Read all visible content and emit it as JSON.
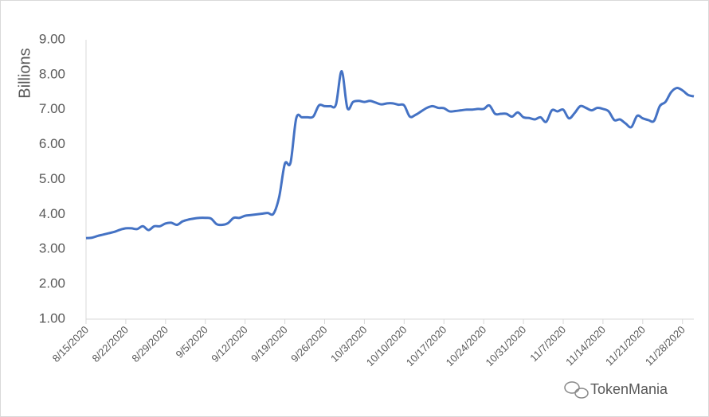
{
  "chart_data": {
    "type": "line",
    "y_label": "Billions",
    "watermark": "TokenMania",
    "x": [
      "8/15/2020",
      "8/16/2020",
      "8/17/2020",
      "8/18/2020",
      "8/19/2020",
      "8/20/2020",
      "8/21/2020",
      "8/22/2020",
      "8/23/2020",
      "8/24/2020",
      "8/25/2020",
      "8/26/2020",
      "8/27/2020",
      "8/28/2020",
      "8/29/2020",
      "8/30/2020",
      "8/31/2020",
      "9/1/2020",
      "9/2/2020",
      "9/3/2020",
      "9/4/2020",
      "9/5/2020",
      "9/6/2020",
      "9/7/2020",
      "9/8/2020",
      "9/9/2020",
      "9/10/2020",
      "9/11/2020",
      "9/12/2020",
      "9/13/2020",
      "9/14/2020",
      "9/15/2020",
      "9/16/2020",
      "9/17/2020",
      "9/18/2020",
      "9/19/2020",
      "9/20/2020",
      "9/21/2020",
      "9/22/2020",
      "9/23/2020",
      "9/24/2020",
      "9/25/2020",
      "9/26/2020",
      "9/27/2020",
      "9/28/2020",
      "9/29/2020",
      "9/30/2020",
      "10/1/2020",
      "10/2/2020",
      "10/3/2020",
      "10/4/2020",
      "10/5/2020",
      "10/6/2020",
      "10/7/2020",
      "10/8/2020",
      "10/9/2020",
      "10/10/2020",
      "10/11/2020",
      "10/12/2020",
      "10/13/2020",
      "10/14/2020",
      "10/15/2020",
      "10/16/2020",
      "10/17/2020",
      "10/18/2020",
      "10/19/2020",
      "10/20/2020",
      "10/21/2020",
      "10/22/2020",
      "10/23/2020",
      "10/24/2020",
      "10/25/2020",
      "10/26/2020",
      "10/27/2020",
      "10/28/2020",
      "10/29/2020",
      "10/30/2020",
      "10/31/2020",
      "11/1/2020",
      "11/2/2020",
      "11/3/2020",
      "11/4/2020",
      "11/5/2020",
      "11/6/2020",
      "11/7/2020",
      "11/8/2020",
      "11/9/2020",
      "11/10/2020",
      "11/11/2020",
      "11/12/2020",
      "11/13/2020",
      "11/14/2020",
      "11/15/2020",
      "11/16/2020",
      "11/17/2020",
      "11/18/2020",
      "11/19/2020",
      "11/20/2020",
      "11/21/2020",
      "11/22/2020",
      "11/23/2020",
      "11/24/2020",
      "11/25/2020",
      "11/26/2020",
      "11/27/2020",
      "11/28/2020",
      "11/29/2020",
      "11/30/2020"
    ],
    "series": [
      {
        "color": "#4472c4",
        "values": [
          3.32,
          3.33,
          3.38,
          3.42,
          3.46,
          3.5,
          3.56,
          3.6,
          3.6,
          3.58,
          3.66,
          3.55,
          3.66,
          3.66,
          3.74,
          3.76,
          3.7,
          3.8,
          3.85,
          3.88,
          3.9,
          3.9,
          3.88,
          3.72,
          3.7,
          3.75,
          3.9,
          3.9,
          3.96,
          3.98,
          4.0,
          4.02,
          4.04,
          4.02,
          4.5,
          5.45,
          5.48,
          6.75,
          6.78,
          6.78,
          6.8,
          7.12,
          7.1,
          7.1,
          7.15,
          8.1,
          7.05,
          7.22,
          7.25,
          7.22,
          7.25,
          7.2,
          7.15,
          7.18,
          7.18,
          7.14,
          7.12,
          6.8,
          6.85,
          6.95,
          7.05,
          7.1,
          7.05,
          7.04,
          6.95,
          6.96,
          6.98,
          7.0,
          7.0,
          7.02,
          7.02,
          7.12,
          6.88,
          6.88,
          6.88,
          6.8,
          6.92,
          6.78,
          6.76,
          6.72,
          6.78,
          6.65,
          6.98,
          6.95,
          7.0,
          6.75,
          6.9,
          7.1,
          7.05,
          6.98,
          7.05,
          7.02,
          6.95,
          6.7,
          6.72,
          6.6,
          6.5,
          6.82,
          6.75,
          6.7,
          6.68,
          7.1,
          7.22,
          7.5,
          7.62,
          7.55,
          7.42,
          7.38
        ]
      }
    ],
    "xlim": [
      "8/15/2020",
      "11/30/2020"
    ],
    "xticks": [
      "8/15/2020",
      "8/22/2020",
      "8/29/2020",
      "9/5/2020",
      "9/12/2020",
      "9/19/2020",
      "9/26/2020",
      "10/3/2020",
      "10/10/2020",
      "10/17/2020",
      "10/24/2020",
      "10/31/2020",
      "11/7/2020",
      "11/14/2020",
      "11/21/2020",
      "11/28/2020"
    ],
    "ylim": [
      1,
      9
    ],
    "yticks": [
      {
        "value": 1,
        "label": "1.00"
      },
      {
        "value": 2,
        "label": "2.00"
      },
      {
        "value": 3,
        "label": "3.00"
      },
      {
        "value": 4,
        "label": "4.00"
      },
      {
        "value": 5,
        "label": "5.00"
      },
      {
        "value": 6,
        "label": "6.00"
      },
      {
        "value": 7,
        "label": "7.00"
      },
      {
        "value": 8,
        "label": "8.00"
      },
      {
        "value": 9,
        "label": "9.00"
      }
    ]
  }
}
